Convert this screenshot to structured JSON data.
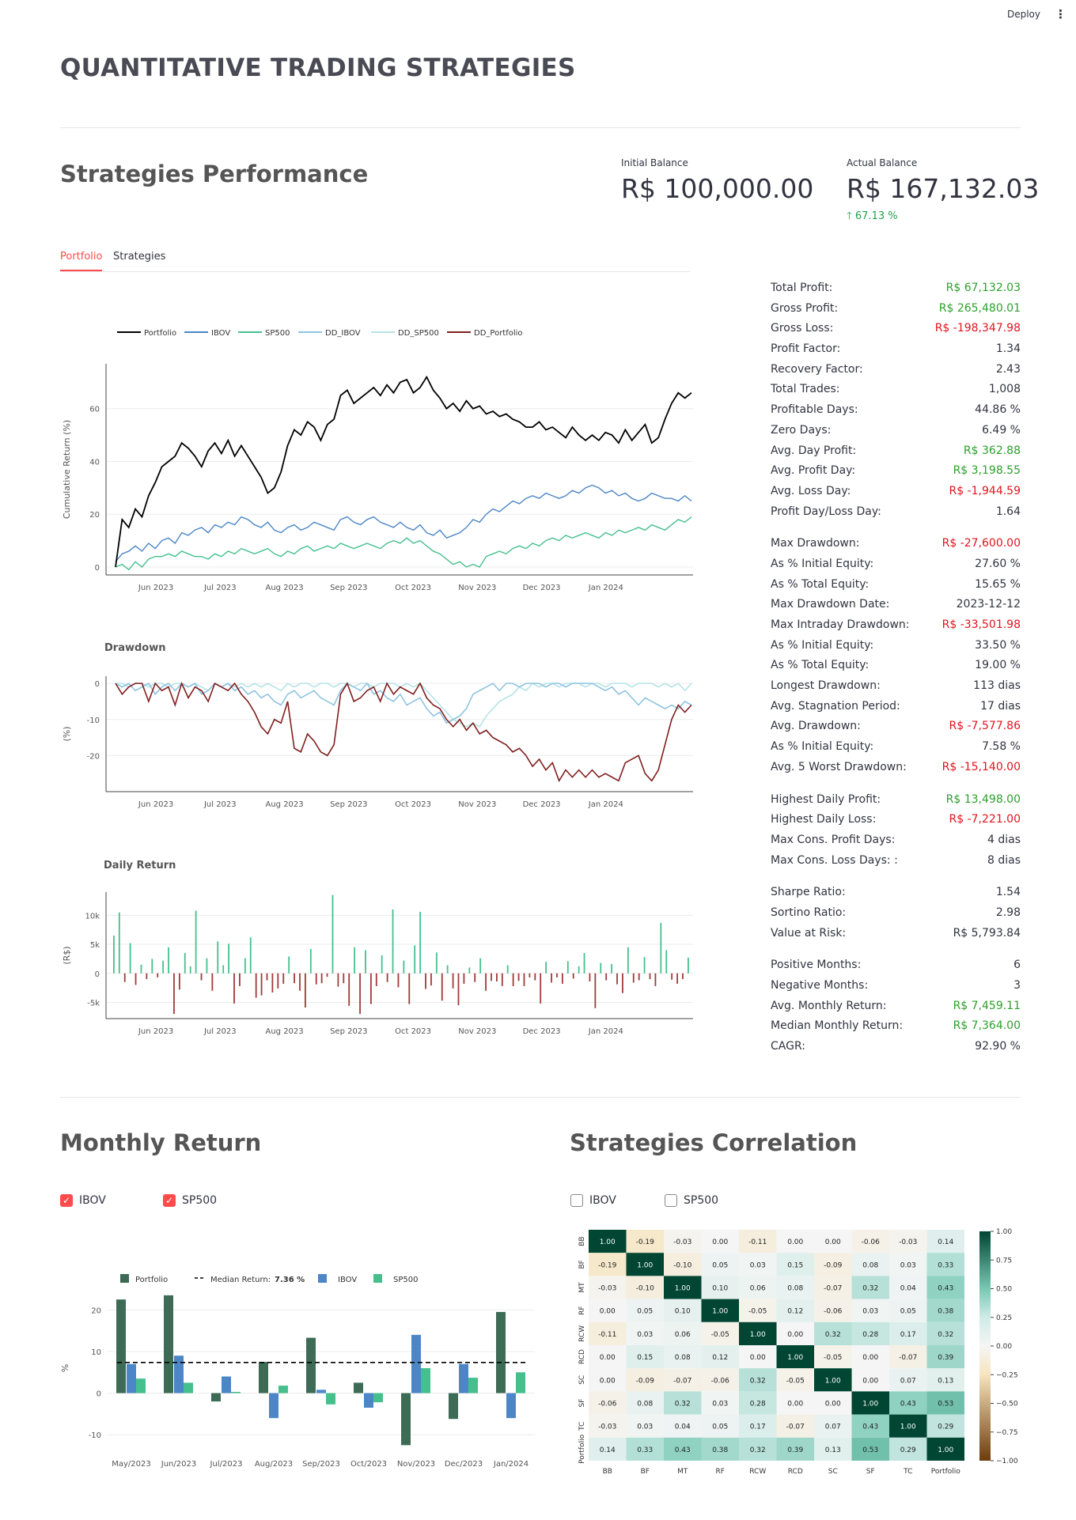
{
  "header": {
    "deploy": "Deploy",
    "menu_icon": "⋮"
  },
  "title": "QUANTITATIVE TRADING STRATEGIES",
  "performance": {
    "heading": "Strategies Performance",
    "initial_label": "Initial Balance",
    "initial_value": "R$ 100,000.00",
    "actual_label": "Actual Balance",
    "actual_value": "R$ 167,132.03",
    "delta": "67.13 %"
  },
  "tabs": [
    "Portfolio",
    "Strategies"
  ],
  "colors": {
    "accent": "#ff4b4b",
    "positive": "#2ca02c",
    "negative": "#e0141e",
    "portfolio": "#000000",
    "ibov": "#4c86c6",
    "sp500": "#45c08d",
    "dd_ibov": "#8fc4e0",
    "dd_sp500": "#b7e3e6",
    "dd_portfolio": "#7f1f1f"
  },
  "stats": [
    [
      [
        "Total Profit:",
        "R$ 67,132.03",
        "pos"
      ],
      [
        "Gross Profit:",
        "R$ 265,480.01",
        "pos"
      ],
      [
        "Gross Loss:",
        "R$ -198,347.98",
        "neg"
      ],
      [
        "Profit Factor:",
        "1.34",
        ""
      ],
      [
        "Recovery Factor:",
        "2.43",
        ""
      ],
      [
        "Total Trades:",
        "1,008",
        ""
      ],
      [
        "Profitable Days:",
        "44.86 %",
        ""
      ],
      [
        "Zero Days:",
        "6.49 %",
        ""
      ],
      [
        "Avg. Day Profit:",
        "R$ 362.88",
        "pos"
      ],
      [
        "Avg. Profit Day:",
        "R$ 3,198.55",
        "pos"
      ],
      [
        "Avg. Loss Day:",
        "R$ -1,944.59",
        "neg"
      ],
      [
        "Profit Day/Loss Day:",
        "1.64",
        ""
      ]
    ],
    [
      [
        "Max Drawdown:",
        "R$ -27,600.00",
        "neg"
      ],
      [
        "As % Initial Equity:",
        "27.60 %",
        ""
      ],
      [
        "As % Total Equity:",
        "15.65 %",
        ""
      ],
      [
        "Max Drawdown Date:",
        "2023-12-12",
        ""
      ],
      [
        "Max Intraday Drawdown:",
        "R$ -33,501.98",
        "neg"
      ],
      [
        "As % Initial Equity:",
        "33.50 %",
        ""
      ],
      [
        "As % Total Equity:",
        "19.00 %",
        ""
      ],
      [
        "Longest Drawdown:",
        "113 dias",
        ""
      ],
      [
        "Avg. Stagnation Period:",
        "17 dias",
        ""
      ],
      [
        "Avg. Drawdown:",
        "R$ -7,577.86",
        "neg"
      ],
      [
        "As % Initial Equity:",
        "7.58 %",
        ""
      ],
      [
        "Avg. 5 Worst Drawdown:",
        "R$ -15,140.00",
        "neg"
      ]
    ],
    [
      [
        "Highest Daily Profit:",
        "R$ 13,498.00",
        "pos"
      ],
      [
        "Highest Daily Loss:",
        "R$ -7,221.00",
        "neg"
      ],
      [
        "Max Cons. Profit Days:",
        "4 dias",
        ""
      ],
      [
        "Max Cons. Loss Days: :",
        "8 dias",
        ""
      ]
    ],
    [
      [
        "Sharpe Ratio:",
        "1.54",
        ""
      ],
      [
        "Sortino Ratio:",
        "2.98",
        ""
      ],
      [
        "Value at Risk:",
        "R$ 5,793.84",
        ""
      ]
    ],
    [
      [
        "Positive Months:",
        "6",
        ""
      ],
      [
        "Negative Months:",
        "3",
        ""
      ],
      [
        "Avg. Monthly Return:",
        "R$ 7,459.11",
        "pos"
      ],
      [
        "Median Monthly Return:",
        "R$ 7,364.00",
        "pos"
      ],
      [
        "CAGR:",
        "92.90 %",
        ""
      ]
    ]
  ],
  "monthly": {
    "heading": "Monthly Return",
    "cb_ibov": "IBOV",
    "cb_sp500": "SP500"
  },
  "correlation": {
    "heading": "Strategies Correlation",
    "cb_ibov": "IBOV",
    "cb_sp500": "SP500"
  },
  "chart_data": [
    {
      "type": "line",
      "id": "cumret",
      "legend": [
        "Portfolio",
        "IBOV",
        "SP500",
        "DD_IBOV",
        "DD_SP500",
        "DD_Portfolio"
      ],
      "ylabel": "Cumulative Return (%)",
      "yticks": [
        0,
        20,
        40,
        60
      ],
      "ylim": [
        -3,
        77
      ],
      "xticks": [
        "Jun 2023",
        "Jul 2023",
        "Aug 2023",
        "Sep 2023",
        "Oct 2023",
        "Nov 2023",
        "Dec 2023",
        "Jan 2024"
      ],
      "series": [
        {
          "name": "Portfolio",
          "values": [
            0,
            18,
            15,
            22,
            19,
            27,
            32,
            38,
            40,
            42,
            47,
            45,
            42,
            38,
            44,
            47,
            43,
            48,
            42,
            46,
            42,
            38,
            34,
            28,
            30,
            36,
            46,
            52,
            50,
            55,
            53,
            48,
            54,
            56,
            65,
            67,
            62,
            64,
            66,
            68,
            65,
            69,
            66,
            70,
            71,
            66,
            68,
            72,
            67,
            64,
            60,
            62,
            59,
            63,
            60,
            61,
            58,
            59,
            57,
            58,
            56,
            55,
            53,
            53,
            55,
            52,
            53,
            51,
            49,
            53,
            50,
            48,
            50,
            48,
            51,
            50,
            47,
            52,
            48,
            51,
            54,
            47,
            49,
            56,
            62,
            66,
            64,
            66
          ]
        },
        {
          "name": "IBOV",
          "values": [
            2,
            5,
            6,
            8,
            6,
            9,
            7,
            10,
            11,
            9,
            13,
            12,
            14,
            15,
            13,
            16,
            15,
            17,
            16,
            19,
            18,
            16,
            15,
            17,
            14,
            13,
            15,
            16,
            14,
            15,
            17,
            16,
            15,
            14,
            18,
            19,
            17,
            16,
            18,
            19,
            17,
            16,
            15,
            17,
            15,
            14,
            16,
            13,
            12,
            14,
            11,
            12,
            13,
            15,
            18,
            17,
            20,
            22,
            21,
            23,
            25,
            24,
            26,
            27,
            26,
            28,
            27,
            26,
            27,
            29,
            28,
            30,
            31,
            30,
            28,
            29,
            27,
            28,
            26,
            25,
            26,
            28,
            27,
            26,
            26,
            25,
            27,
            25
          ]
        },
        {
          "name": "SP500",
          "values": [
            0,
            1,
            -1,
            2,
            0,
            3,
            4,
            4,
            5,
            4,
            6,
            5,
            4,
            4,
            3,
            5,
            4,
            6,
            5,
            7,
            6,
            5,
            6,
            7,
            5,
            4,
            6,
            5,
            7,
            8,
            6,
            7,
            8,
            7,
            9,
            8,
            7,
            8,
            9,
            8,
            7,
            9,
            10,
            9,
            11,
            9,
            10,
            8,
            6,
            5,
            3,
            1,
            2,
            0,
            1,
            0,
            4,
            5,
            6,
            5,
            7,
            8,
            7,
            9,
            8,
            10,
            11,
            10,
            12,
            11,
            12,
            13,
            12,
            11,
            13,
            12,
            14,
            13,
            14,
            15,
            14,
            16,
            15,
            14,
            16,
            18,
            17,
            19
          ]
        }
      ]
    },
    {
      "type": "line",
      "id": "drawdown",
      "title": "Drawdown",
      "ylabel": "(%)",
      "yticks": [
        0,
        -10,
        -20
      ],
      "ylim": [
        -30,
        2
      ],
      "xticks": [
        "Jun 2023",
        "Jul 2023",
        "Aug 2023",
        "Sep 2023",
        "Oct 2023",
        "Nov 2023",
        "Dec 2023",
        "Jan 2024"
      ],
      "series": [
        {
          "name": "DD_Portfolio",
          "values": [
            0,
            -3,
            -1,
            0,
            0,
            -5,
            0,
            -2,
            -1,
            -6,
            0,
            -4,
            -1,
            -2,
            -5,
            0,
            -1,
            -2,
            0,
            -3,
            -5,
            -8,
            -12,
            -14,
            -10,
            -11,
            -5,
            -18,
            -19,
            -14,
            -16,
            -19,
            -20,
            -17,
            -3,
            0,
            -5,
            -4,
            -2,
            -1,
            -5,
            0,
            -3,
            -1,
            -2,
            -3,
            0,
            -4,
            -6,
            -7,
            -10,
            -12,
            -10,
            -13,
            -11,
            -14,
            -13,
            -15,
            -16,
            -17,
            -19,
            -18,
            -20,
            -23,
            -21,
            -24,
            -22,
            -27,
            -24,
            -26,
            -24,
            -26,
            -24,
            -26,
            -25,
            -26,
            -27,
            -22,
            -21,
            -20,
            -25,
            -27,
            -24,
            -17,
            -10,
            -6,
            -8,
            -6
          ]
        },
        {
          "name": "DD_IBOV",
          "values": [
            0,
            -1,
            0,
            -2,
            -1,
            0,
            -3,
            -1,
            0,
            -2,
            0,
            -1,
            0,
            -3,
            -2,
            0,
            -1,
            0,
            -2,
            -1,
            -3,
            -2,
            -4,
            -3,
            -5,
            -6,
            -3,
            -2,
            -4,
            -3,
            -2,
            -4,
            -5,
            -6,
            -2,
            0,
            -1,
            -2,
            0,
            -3,
            -2,
            -4,
            -5,
            -3,
            -6,
            -5,
            -4,
            -7,
            -9,
            -8,
            -11,
            -10,
            -9,
            -7,
            -3,
            -2,
            -1,
            0,
            -2,
            0,
            0,
            -1,
            0,
            0,
            0,
            -1,
            0,
            0,
            -1,
            0,
            0,
            0,
            0,
            -1,
            -2,
            -1,
            -3,
            -2,
            -4,
            -6,
            -4,
            -5,
            -6,
            -7,
            -6,
            -7,
            -5,
            -6
          ]
        },
        {
          "name": "DD_SP500",
          "values": [
            0,
            0,
            -1,
            0,
            0,
            -1,
            0,
            0,
            -1,
            0,
            0,
            -1,
            0,
            -1,
            -2,
            0,
            -1,
            0,
            -1,
            0,
            -1,
            0,
            -1,
            0,
            -1,
            -2,
            0,
            -1,
            0,
            0,
            -1,
            0,
            0,
            -1,
            0,
            0,
            -1,
            0,
            0,
            -1,
            0,
            0,
            0,
            -1,
            0,
            -1,
            0,
            -2,
            -4,
            -6,
            -8,
            -10,
            -11,
            -12,
            -11,
            -12,
            -9,
            -7,
            -5,
            -4,
            -3,
            -1,
            -2,
            0,
            -1,
            0,
            0,
            -1,
            0,
            0,
            0,
            -1,
            0,
            0,
            -1,
            0,
            0,
            0,
            -1,
            0,
            0,
            0,
            -1,
            0,
            -1,
            0,
            -2,
            0
          ]
        }
      ]
    },
    {
      "type": "bar",
      "id": "daily",
      "title": "Daily Return",
      "ylabel": "(R$)",
      "yticks": [
        "10k",
        "5k",
        "0",
        "-5k"
      ],
      "ylim": [
        -7800,
        14000
      ],
      "xticks": [
        "Jun 2023",
        "Jul 2023",
        "Aug 2023",
        "Sep 2023",
        "Oct 2023",
        "Nov 2023",
        "Dec 2023",
        "Jan 2024"
      ],
      "values": [
        6500,
        10500,
        -1500,
        5200,
        -2000,
        1500,
        -1000,
        2500,
        -700,
        2200,
        4500,
        -7000,
        -2800,
        3500,
        1200,
        10800,
        -1200,
        2600,
        -3000,
        5500,
        1400,
        5100,
        -5200,
        -2200,
        2600,
        6200,
        -4200,
        -3800,
        -1200,
        -3300,
        -2600,
        -1800,
        2900,
        -1700,
        -3000,
        -5900,
        4200,
        -1900,
        -1700,
        -600,
        13500,
        -2300,
        -1700,
        -5600,
        4500,
        -7000,
        4000,
        -5300,
        -2200,
        3100,
        -1500,
        11000,
        -2400,
        2200,
        -5300,
        4800,
        10600,
        -2700,
        -2100,
        3600,
        -4700,
        1400,
        -2600,
        -5500,
        -1800,
        1000,
        -1500,
        2600,
        -3000,
        -1300,
        -1400,
        -2200,
        1400,
        -2200,
        -1300,
        -2200,
        -700,
        -1200,
        -5200,
        2000,
        -1600,
        -700,
        -1800,
        2100,
        -900,
        1200,
        3500,
        -1400,
        -6000,
        1800,
        -1200,
        1600,
        -1900,
        -3400,
        4500,
        -1600,
        -1200,
        2800,
        -1000,
        -2200,
        8700,
        4000,
        -1100,
        -1800,
        -1000,
        2700
      ]
    },
    {
      "type": "bar",
      "id": "monthly",
      "categories": [
        "May/2023",
        "Jun/2023",
        "Jul/2023",
        "Aug/2023",
        "Sep/2023",
        "Oct/2023",
        "Nov/2023",
        "Dec/2023",
        "Jan/2024"
      ],
      "ylabel": "%",
      "yticks": [
        20,
        10,
        0,
        -10
      ],
      "ylim": [
        -13,
        25
      ],
      "median_label": "Median Return:",
      "median_value": "7.36 %",
      "median": 7.36,
      "series": [
        {
          "name": "Portfolio",
          "values": [
            22.5,
            23.5,
            -2,
            7.5,
            13.3,
            2.5,
            -12.5,
            -6.2,
            19.5
          ]
        },
        {
          "name": "IBOV",
          "values": [
            7,
            9,
            4,
            -6,
            0.8,
            -3.5,
            14,
            7,
            -6
          ]
        },
        {
          "name": "SP500",
          "values": [
            3.5,
            2.5,
            0.3,
            1.8,
            -2.7,
            -2.2,
            6,
            3.7,
            5
          ]
        }
      ]
    },
    {
      "type": "heatmap",
      "id": "corr",
      "labels": [
        "BB",
        "BF",
        "MT",
        "RF",
        "RCW",
        "RCD",
        "SC",
        "SF",
        "TC",
        "Portfolio"
      ],
      "colorbar": [
        "1.00",
        "0.75",
        "0.50",
        "0.25",
        "0.00",
        "−0.25",
        "−0.50",
        "−0.75",
        "−1.00"
      ],
      "values": [
        [
          1.0,
          -0.19,
          -0.03,
          0.0,
          -0.11,
          -0.0,
          0.0,
          -0.06,
          -0.03,
          0.14
        ],
        [
          -0.19,
          1.0,
          -0.1,
          0.05,
          0.03,
          0.15,
          -0.09,
          0.08,
          0.03,
          0.33
        ],
        [
          -0.03,
          -0.1,
          1.0,
          0.1,
          0.06,
          0.08,
          -0.07,
          0.32,
          0.04,
          0.43
        ],
        [
          0.0,
          0.05,
          0.1,
          1.0,
          -0.05,
          0.12,
          -0.06,
          0.03,
          0.05,
          0.38
        ],
        [
          -0.11,
          0.03,
          0.06,
          -0.05,
          1.0,
          -0.0,
          0.32,
          0.28,
          0.17,
          0.32
        ],
        [
          -0.0,
          0.15,
          0.08,
          0.12,
          -0.0,
          1.0,
          -0.05,
          0.0,
          -0.07,
          0.39
        ],
        [
          0.0,
          -0.09,
          -0.07,
          -0.06,
          0.32,
          -0.05,
          1.0,
          0.0,
          0.07,
          0.13
        ],
        [
          -0.06,
          0.08,
          0.32,
          0.03,
          0.28,
          0.0,
          0.0,
          1.0,
          0.43,
          0.53
        ],
        [
          -0.03,
          0.03,
          0.04,
          0.05,
          0.17,
          -0.07,
          0.07,
          0.43,
          1.0,
          0.29
        ],
        [
          0.14,
          0.33,
          0.43,
          0.38,
          0.32,
          0.39,
          0.13,
          0.53,
          0.29,
          1.0
        ]
      ]
    }
  ]
}
